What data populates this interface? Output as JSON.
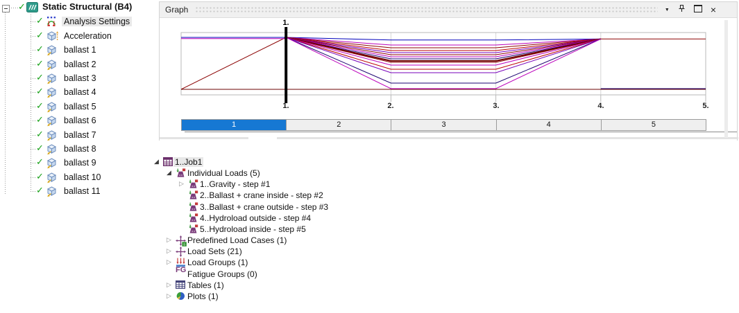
{
  "left_tree": {
    "root": {
      "label": "Static Structural (B4)",
      "icon": "static-structural",
      "checked": true
    },
    "items": [
      {
        "label": "Analysis Settings",
        "icon": "analysis-settings",
        "checked": true,
        "selected": true
      },
      {
        "label": "Acceleration",
        "icon": "acceleration",
        "checked": true
      },
      {
        "label": "ballast 1",
        "icon": "ballast",
        "checked": true
      },
      {
        "label": "ballast 2",
        "icon": "ballast",
        "checked": true
      },
      {
        "label": "ballast 3",
        "icon": "ballast",
        "checked": true
      },
      {
        "label": "ballast 4",
        "icon": "ballast",
        "checked": true
      },
      {
        "label": "ballast 5",
        "icon": "ballast",
        "checked": true
      },
      {
        "label": "ballast 6",
        "icon": "ballast",
        "checked": true
      },
      {
        "label": "ballast 7",
        "icon": "ballast",
        "checked": true
      },
      {
        "label": "ballast 8",
        "icon": "ballast",
        "checked": true
      },
      {
        "label": "ballast 9",
        "icon": "ballast",
        "checked": true
      },
      {
        "label": "ballast 10",
        "icon": "ballast",
        "checked": true
      },
      {
        "label": "ballast 11",
        "icon": "ballast",
        "checked": true
      }
    ]
  },
  "graph_panel": {
    "title": "Graph",
    "header_icons": [
      "dropdown",
      "pin",
      "maximize",
      "close"
    ],
    "close_glyph": "×",
    "dropdown_glyph": "▼",
    "marker_label": "1.",
    "marker_step": 1,
    "axis_labels": [
      "1.",
      "2.",
      "3.",
      "4.",
      "5."
    ],
    "steps": [
      {
        "label": "1",
        "selected": true
      },
      {
        "label": "2"
      },
      {
        "label": "3"
      },
      {
        "label": "4"
      },
      {
        "label": "5"
      }
    ],
    "selected_step_color": "#1678d3",
    "axis_range": [
      0,
      5
    ],
    "lines": [
      {
        "name": "gravity-ramp",
        "color": "#8b0000",
        "points": [
          [
            0,
            0
          ],
          [
            1,
            1
          ]
        ]
      },
      {
        "name": "fan-1",
        "color": "#0000bb",
        "points": [
          [
            1,
            1
          ],
          [
            2,
            0.95
          ],
          [
            3,
            0.95
          ],
          [
            4,
            0.97
          ]
        ]
      },
      {
        "name": "fan-2",
        "color": "#bb00bb",
        "points": [
          [
            1,
            1
          ],
          [
            2,
            0.853
          ],
          [
            3,
            0.853
          ],
          [
            4,
            0.97
          ]
        ]
      },
      {
        "name": "fan-3",
        "color": "#8b0000",
        "points": [
          [
            1,
            1
          ],
          [
            2,
            0.8
          ],
          [
            3,
            0.8
          ],
          [
            4,
            0.97
          ]
        ]
      },
      {
        "name": "fan-4",
        "color": "#bb0000",
        "points": [
          [
            1,
            1
          ],
          [
            2,
            0.747
          ],
          [
            3,
            0.747
          ],
          [
            4,
            0.97
          ]
        ]
      },
      {
        "name": "fan-5",
        "color": "#7700bb",
        "points": [
          [
            1,
            1
          ],
          [
            2,
            0.707
          ],
          [
            3,
            0.707
          ],
          [
            4,
            0.97
          ]
        ]
      },
      {
        "name": "fan-6",
        "color": "#8b0000",
        "points": [
          [
            1,
            1
          ],
          [
            2,
            0.667
          ],
          [
            3,
            0.667
          ],
          [
            4,
            0.97
          ]
        ]
      },
      {
        "name": "fan-7",
        "color": "#bb00bb",
        "points": [
          [
            1,
            1
          ],
          [
            2,
            0.627
          ],
          [
            3,
            0.627
          ],
          [
            4,
            0.97
          ]
        ]
      },
      {
        "name": "fan-8",
        "color": "#1a0070",
        "points": [
          [
            1,
            1
          ],
          [
            2,
            0.587
          ],
          [
            3,
            0.587
          ],
          [
            4,
            0.97
          ]
        ]
      },
      {
        "name": "fan-9",
        "color": "#6b0000",
        "width": 2,
        "points": [
          [
            1,
            1
          ],
          [
            2,
            0.547
          ],
          [
            3,
            0.547
          ],
          [
            4,
            0.97
          ]
        ]
      },
      {
        "name": "fan-10",
        "color": "#8b0000",
        "points": [
          [
            1,
            1
          ],
          [
            2,
            0.52
          ],
          [
            3,
            0.52
          ],
          [
            4,
            0.97
          ]
        ]
      },
      {
        "name": "fan-11",
        "color": "#bb00bb",
        "points": [
          [
            1,
            1
          ],
          [
            2,
            0.467
          ],
          [
            3,
            0.467
          ],
          [
            4,
            0.97
          ]
        ]
      },
      {
        "name": "fan-12",
        "color": "#bb0000",
        "points": [
          [
            1,
            1
          ],
          [
            2,
            0.387
          ],
          [
            3,
            0.387
          ],
          [
            4,
            0.97
          ]
        ]
      },
      {
        "name": "fan-13",
        "color": "#7700bb",
        "points": [
          [
            1,
            1
          ],
          [
            2,
            0.32
          ],
          [
            3,
            0.32
          ],
          [
            4,
            0.97
          ]
        ]
      },
      {
        "name": "fan-14",
        "color": "#1a0070",
        "points": [
          [
            1,
            1
          ],
          [
            2,
            0.12
          ],
          [
            3,
            0.12
          ],
          [
            4,
            0.97
          ]
        ]
      },
      {
        "name": "fan-15",
        "color": "#bb00bb",
        "points": [
          [
            1,
            1
          ],
          [
            2,
            0.013
          ],
          [
            3,
            0.013
          ],
          [
            4,
            0.97
          ]
        ]
      },
      {
        "name": "top-left-blue",
        "color": "#0000bb",
        "points": [
          [
            0,
            1
          ],
          [
            1,
            1
          ]
        ]
      },
      {
        "name": "top-left-magenta",
        "color": "#bb00bb",
        "points": [
          [
            0,
            0.977
          ],
          [
            1,
            0.977
          ]
        ]
      },
      {
        "name": "top-right-darkred",
        "color": "#8b0000",
        "points": [
          [
            4,
            0.97
          ],
          [
            5,
            0.97
          ]
        ]
      },
      {
        "name": "bottom-right-navy",
        "color": "#1a0070",
        "points": [
          [
            4,
            0.013
          ],
          [
            5,
            0.013
          ]
        ]
      },
      {
        "name": "baseline",
        "color": "#6b0000",
        "points": [
          [
            0,
            0
          ],
          [
            5,
            0
          ]
        ]
      }
    ]
  },
  "job_tree": {
    "items": [
      {
        "label": "1..Job1",
        "icon": "job-table",
        "expander": "expanded",
        "indent": 0,
        "selected": true
      },
      {
        "label": "Individual Loads (5)",
        "icon": "load",
        "expander": "expanded",
        "indent": 1
      },
      {
        "label": "1..Gravity - step #1",
        "icon": "load",
        "expander": "collapsed",
        "indent": 2
      },
      {
        "label": "2..Ballast + crane inside - step #2",
        "icon": "load",
        "expander": "none",
        "indent": 2
      },
      {
        "label": "3..Ballast + crane outside - step #3",
        "icon": "load",
        "expander": "none",
        "indent": 2
      },
      {
        "label": "4..Hydroload outside - step #4",
        "icon": "load",
        "expander": "none",
        "indent": 2
      },
      {
        "label": "5..Hydroload inside - step #5",
        "icon": "load",
        "expander": "none",
        "indent": 2
      },
      {
        "label": "Predefined Load Cases (1)",
        "icon": "load-cases",
        "expander": "collapsed",
        "indent": 1
      },
      {
        "label": "Load Sets (21)",
        "icon": "load-sets",
        "expander": "collapsed",
        "indent": 1
      },
      {
        "label": "Load Groups (1)",
        "icon": "load-groups",
        "expander": "collapsed",
        "indent": 1
      },
      {
        "label": "Fatigue Groups (0)",
        "icon": "fatigue",
        "expander": "none",
        "indent": 1
      },
      {
        "label": "Tables (1)",
        "icon": "tables",
        "expander": "collapsed",
        "indent": 1
      },
      {
        "label": "Plots (1)",
        "icon": "plots",
        "expander": "collapsed",
        "indent": 1
      }
    ]
  }
}
